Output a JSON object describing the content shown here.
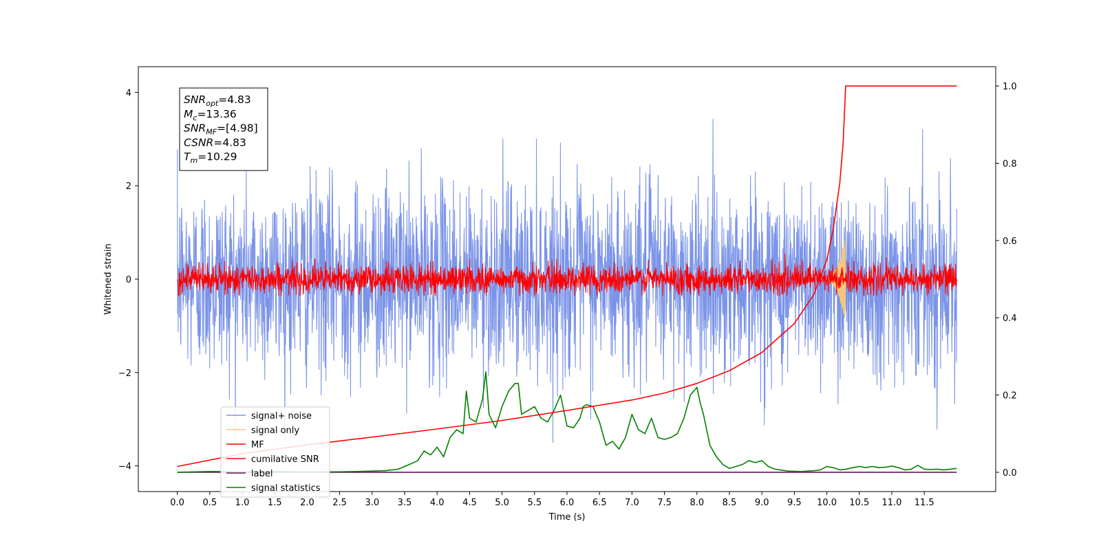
{
  "chart_data": {
    "type": "line",
    "title": "",
    "xlabel": "Time (s)",
    "ylabel": "Whitened strain",
    "y2label": "",
    "xlim": [
      -0.6,
      12.6
    ],
    "ylim": [
      -4.55,
      4.55
    ],
    "y2lim": [
      -0.05,
      1.05
    ],
    "xticks": [
      0.0,
      0.5,
      1.0,
      1.5,
      2.0,
      2.5,
      3.0,
      3.5,
      4.0,
      4.5,
      5.0,
      5.5,
      6.0,
      6.5,
      7.0,
      7.5,
      8.0,
      8.5,
      9.0,
      9.5,
      10.0,
      10.5,
      11.0,
      11.5
    ],
    "xticklabels": [
      "0.0",
      "0.5",
      "1.0",
      "1.5",
      "2.0",
      "2.5",
      "3.0",
      "3.5",
      "4.0",
      "4.5",
      "5.0",
      "5.5",
      "6.0",
      "6.5",
      "7.0",
      "7.5",
      "8.0",
      "8.5",
      "9.0",
      "9.5",
      "10.0",
      "10.5",
      "11.0",
      "11.5"
    ],
    "yticks": [
      -4,
      -2,
      0,
      2,
      4
    ],
    "yticklabels": [
      "−4",
      "−2",
      "0",
      "2",
      "4"
    ],
    "y2ticks": [
      0.0,
      0.2,
      0.4,
      0.6,
      0.8,
      1.0
    ],
    "y2ticklabels": [
      "0.0",
      "0.2",
      "0.4",
      "0.6",
      "0.8",
      "1.0"
    ],
    "annotation": [
      {
        "main": "SNR",
        "sub": "opt",
        "rest": "=4.83"
      },
      {
        "main": "M",
        "sub": "c",
        "rest": "=13.36"
      },
      {
        "main": "SNR",
        "sub": "MF",
        "rest": "=[4.98]"
      },
      {
        "main": "CSNR",
        "sub": "",
        "rest": "=4.83"
      },
      {
        "main": "T",
        "sub": "m",
        "rest": "=10.29"
      }
    ],
    "legend_position": "lower-left",
    "series": [
      {
        "name": "signal+ noise",
        "axis": "left",
        "color": "#7b94e8",
        "kind": "noise",
        "x_range": [
          0.0,
          12.0
        ],
        "approx_envelope": [
          -3.5,
          4.1
        ],
        "noise_std": 1.0
      },
      {
        "name": "signal only",
        "axis": "left",
        "color": "#f5c77a",
        "kind": "chirp",
        "x_range": [
          9.9,
          10.29
        ],
        "peak_amplitude": 0.95
      },
      {
        "name": "MF",
        "axis": "left",
        "color": "#ff0000",
        "kind": "noise",
        "x_range": [
          0.0,
          12.0
        ],
        "approx_envelope": [
          -0.35,
          0.95
        ],
        "noise_std": 0.15
      },
      {
        "name": "cumilative SNR",
        "axis": "right",
        "color": "#ff0000",
        "kind": "curve",
        "x": [
          0.0,
          1.0,
          2.0,
          3.0,
          4.0,
          5.0,
          6.0,
          7.0,
          7.5,
          8.0,
          8.5,
          9.0,
          9.5,
          9.8,
          10.0,
          10.1,
          10.2,
          10.25,
          10.29,
          10.3,
          12.0
        ],
        "y": [
          0.015,
          0.048,
          0.071,
          0.091,
          0.112,
          0.134,
          0.16,
          0.187,
          0.205,
          0.23,
          0.263,
          0.31,
          0.385,
          0.46,
          0.55,
          0.63,
          0.75,
          0.85,
          1.0,
          1.0,
          1.0
        ]
      },
      {
        "name": "label",
        "axis": "right",
        "color": "#6a0f5e",
        "kind": "curve",
        "x": [
          0.0,
          12.0
        ],
        "y": [
          0.0,
          0.0
        ]
      },
      {
        "name": "signal statistics",
        "axis": "right",
        "color": "#008000",
        "kind": "curve",
        "x": [
          0.0,
          0.5,
          1.0,
          1.5,
          2.0,
          2.5,
          3.0,
          3.2,
          3.4,
          3.5,
          3.6,
          3.7,
          3.8,
          3.9,
          4.0,
          4.1,
          4.2,
          4.3,
          4.4,
          4.45,
          4.5,
          4.6,
          4.7,
          4.75,
          4.8,
          4.9,
          5.0,
          5.1,
          5.2,
          5.25,
          5.3,
          5.4,
          5.5,
          5.6,
          5.7,
          5.8,
          5.9,
          6.0,
          6.1,
          6.2,
          6.25,
          6.3,
          6.4,
          6.5,
          6.6,
          6.7,
          6.8,
          6.9,
          7.0,
          7.1,
          7.2,
          7.3,
          7.4,
          7.5,
          7.6,
          7.7,
          7.8,
          7.9,
          8.0,
          8.05,
          8.1,
          8.2,
          8.3,
          8.4,
          8.5,
          8.6,
          8.7,
          8.8,
          8.9,
          9.0,
          9.1,
          9.2,
          9.4,
          9.6,
          9.8,
          9.9,
          10.0,
          10.1,
          10.2,
          10.3,
          10.4,
          10.5,
          10.6,
          10.7,
          10.8,
          10.9,
          11.0,
          11.1,
          11.2,
          11.3,
          11.4,
          11.5,
          11.6,
          11.7,
          11.8,
          11.9,
          12.0
        ],
        "y": [
          0.0,
          0.002,
          0.001,
          0.002,
          0.001,
          0.001,
          0.003,
          0.004,
          0.008,
          0.015,
          0.022,
          0.03,
          0.055,
          0.045,
          0.065,
          0.04,
          0.09,
          0.11,
          0.1,
          0.21,
          0.14,
          0.13,
          0.19,
          0.26,
          0.15,
          0.115,
          0.17,
          0.21,
          0.23,
          0.23,
          0.15,
          0.16,
          0.17,
          0.14,
          0.13,
          0.16,
          0.2,
          0.12,
          0.115,
          0.14,
          0.17,
          0.175,
          0.17,
          0.13,
          0.07,
          0.08,
          0.06,
          0.09,
          0.15,
          0.11,
          0.1,
          0.14,
          0.09,
          0.085,
          0.09,
          0.1,
          0.14,
          0.2,
          0.22,
          0.18,
          0.15,
          0.07,
          0.04,
          0.02,
          0.01,
          0.015,
          0.02,
          0.03,
          0.025,
          0.03,
          0.015,
          0.008,
          0.003,
          0.002,
          0.004,
          0.006,
          0.015,
          0.012,
          0.006,
          0.008,
          0.012,
          0.015,
          0.012,
          0.015,
          0.012,
          0.013,
          0.016,
          0.012,
          0.006,
          0.008,
          0.018,
          0.008,
          0.007,
          0.008,
          0.006,
          0.008,
          0.01
        ]
      }
    ]
  }
}
